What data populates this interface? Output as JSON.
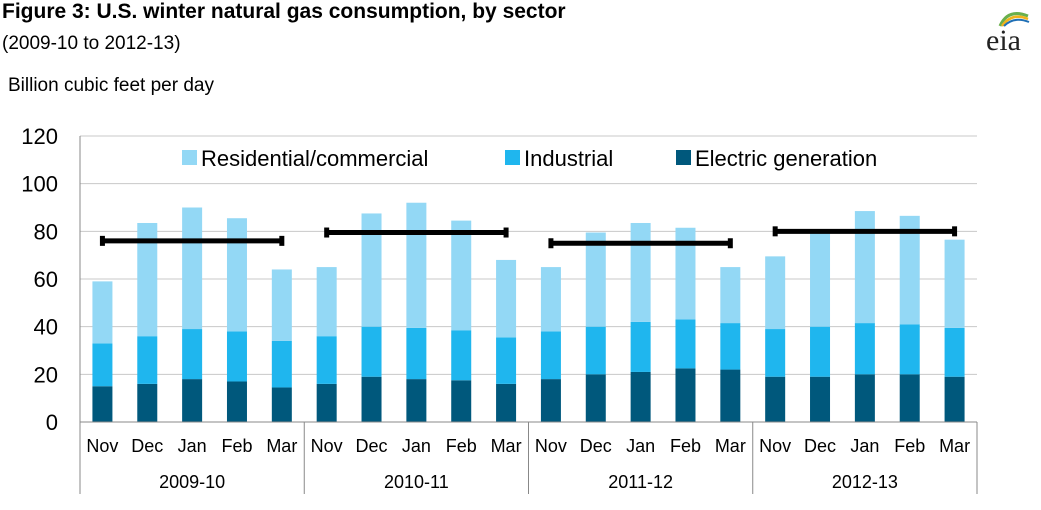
{
  "header": {
    "title": "Figure 3: U.S. winter natural gas consumption, by sector",
    "subtitle": "(2009-10 to 2012-13)",
    "logo_text": "eia"
  },
  "chart_data": {
    "type": "bar",
    "stacked": true,
    "ylabel": "Billion cubic feet per day",
    "ylim": [
      0,
      120
    ],
    "yticks": [
      0,
      20,
      40,
      60,
      80,
      100,
      120
    ],
    "grid": true,
    "legend_position": "top",
    "categories": [
      "Nov",
      "Dec",
      "Jan",
      "Feb",
      "Mar",
      "Nov",
      "Dec",
      "Jan",
      "Feb",
      "Mar",
      "Nov",
      "Dec",
      "Jan",
      "Feb",
      "Mar",
      "Nov",
      "Dec",
      "Jan",
      "Feb",
      "Mar"
    ],
    "groups": [
      {
        "label": "2009-10",
        "months": [
          "Nov",
          "Dec",
          "Jan",
          "Feb",
          "Mar"
        ]
      },
      {
        "label": "2010-11",
        "months": [
          "Nov",
          "Dec",
          "Jan",
          "Feb",
          "Mar"
        ]
      },
      {
        "label": "2011-12",
        "months": [
          "Nov",
          "Dec",
          "Jan",
          "Feb",
          "Mar"
        ]
      },
      {
        "label": "2012-13",
        "months": [
          "Nov",
          "Dec",
          "Jan",
          "Feb",
          "Mar"
        ]
      }
    ],
    "series": [
      {
        "name": "Electric generation",
        "color": "#00587C",
        "values": [
          15,
          16,
          18,
          17,
          14.5,
          16,
          19,
          18,
          17.5,
          16,
          18,
          20,
          21,
          22.5,
          22,
          19,
          19,
          20,
          20,
          19
        ]
      },
      {
        "name": "Industrial",
        "color": "#1FB6EE",
        "values": [
          18,
          20,
          21,
          21,
          19.5,
          20,
          21,
          21.5,
          21,
          19.5,
          20,
          20,
          21,
          20.5,
          19.5,
          20,
          21,
          21.5,
          21,
          20.5
        ]
      },
      {
        "name": "Residential/commercial",
        "color": "#93D8F5",
        "values": [
          26,
          47.5,
          51,
          47.5,
          30,
          29,
          47.5,
          52.5,
          46,
          32.5,
          27,
          39.5,
          41.5,
          38.5,
          23.5,
          30.5,
          40,
          47,
          45.5,
          37
        ]
      }
    ],
    "legend_order": [
      "Residential/commercial",
      "Industrial",
      "Electric generation"
    ],
    "averages": [
      {
        "group": "2009-10",
        "value": 76
      },
      {
        "group": "2010-11",
        "value": 79.5
      },
      {
        "group": "2011-12",
        "value": 75
      },
      {
        "group": "2012-13",
        "value": 80
      }
    ],
    "average_color": "#000000"
  }
}
